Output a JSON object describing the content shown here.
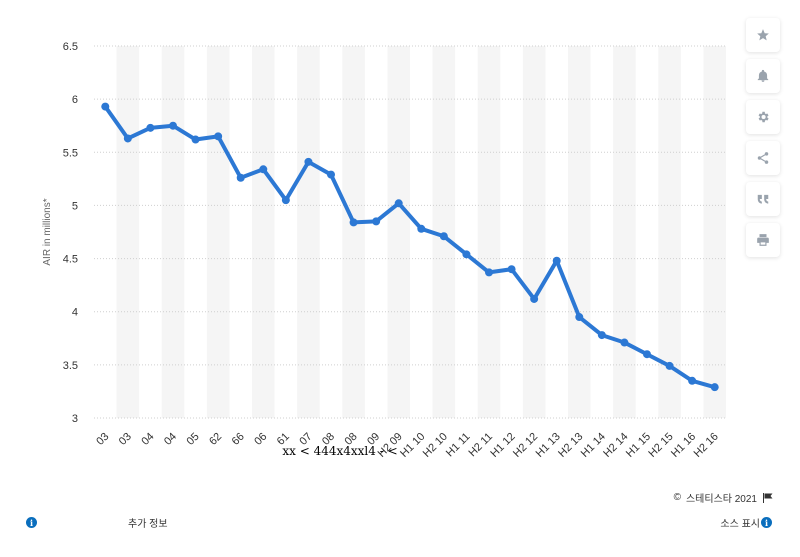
{
  "chart_data": {
    "type": "line",
    "ylabel": "AIR in millions*",
    "ylim": [
      3,
      6.5
    ],
    "yticks": [
      3,
      3.5,
      4,
      4.5,
      5,
      5.5,
      6,
      6.5
    ],
    "categories": [
      "03",
      "03",
      "04",
      "04",
      "05",
      "62",
      "66",
      "06",
      "61",
      "07",
      "08",
      "08",
      "09",
      "H2 09",
      "H1 10",
      "H2 10",
      "H1 11",
      "H2 11",
      "H1 12",
      "H2 12",
      "H1 13",
      "H2 13",
      "H1 14",
      "H2 14",
      "H1 15",
      "H2 15",
      "H1 16",
      "H2 16"
    ],
    "values": [
      5.93,
      5.63,
      5.73,
      5.75,
      5.62,
      5.65,
      5.26,
      5.34,
      5.05,
      5.41,
      5.29,
      4.84,
      4.85,
      5.02,
      4.78,
      4.71,
      4.54,
      4.37,
      4.4,
      4.12,
      4.48,
      3.95,
      3.78,
      3.71,
      3.6,
      3.49,
      3.35,
      3.29
    ],
    "garbled_label": "xx < 444x4xxl4 - <",
    "line_color": "#2c78d4"
  },
  "toolbar": {
    "icons": [
      "star-icon",
      "bell-icon",
      "gear-icon",
      "share-icon",
      "quote-icon",
      "print-icon"
    ]
  },
  "footer": {
    "copyright": "스테티스타 2021",
    "copyright_symbol": "©",
    "more_info": "추가 정보",
    "show_source": "소스 표시",
    "info_glyph": "i"
  }
}
